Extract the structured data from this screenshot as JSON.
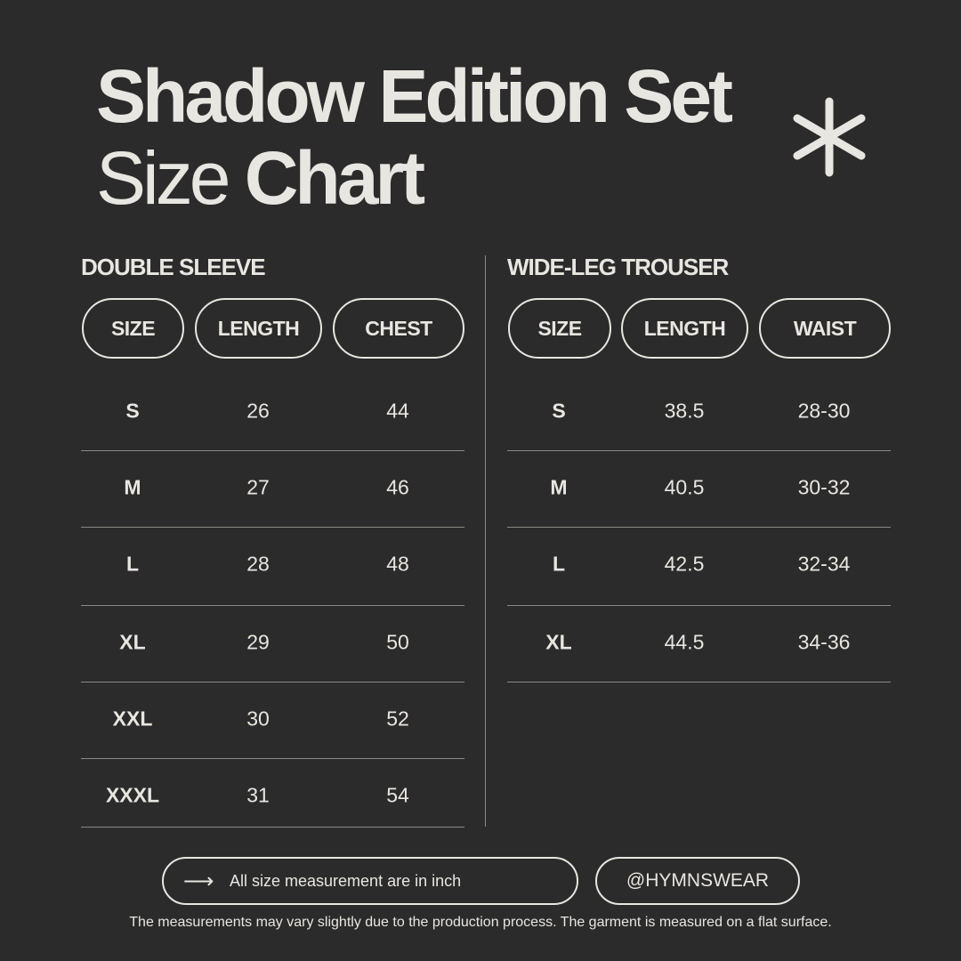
{
  "title": {
    "line1": "Shadow Edition Set",
    "line2_light": "Size",
    "line2_bold": "Chart"
  },
  "colors": {
    "background": "#2b2b2b",
    "text": "#e8e6e0",
    "divider": "#8a8984"
  },
  "icons": {
    "decor": "asterisk-icon",
    "footer": "arrow-right-icon"
  },
  "tables": [
    {
      "title": "DOUBLE SLEEVE",
      "headers": [
        "SIZE",
        "LENGTH",
        "CHEST"
      ],
      "rows": [
        [
          "S",
          "26",
          "44"
        ],
        [
          "M",
          "27",
          "46"
        ],
        [
          "L",
          "28",
          "48"
        ],
        [
          "XL",
          "29",
          "50"
        ],
        [
          "XXL",
          "30",
          "52"
        ],
        [
          "XXXL",
          "31",
          "54"
        ]
      ]
    },
    {
      "title": "WIDE-LEG TROUSER",
      "headers": [
        "SIZE",
        "LENGTH",
        "WAIST"
      ],
      "rows": [
        [
          "S",
          "38.5",
          "28-30"
        ],
        [
          "M",
          "40.5",
          "30-32"
        ],
        [
          "L",
          "42.5",
          "32-34"
        ],
        [
          "XL",
          "44.5",
          "34-36"
        ]
      ]
    }
  ],
  "footer": {
    "unit_note": "All size measurement are in inch",
    "handle": "@HYMNSWEAR",
    "disclaimer": "The measurements may vary slightly due to the production process. The garment is measured on a flat surface."
  }
}
